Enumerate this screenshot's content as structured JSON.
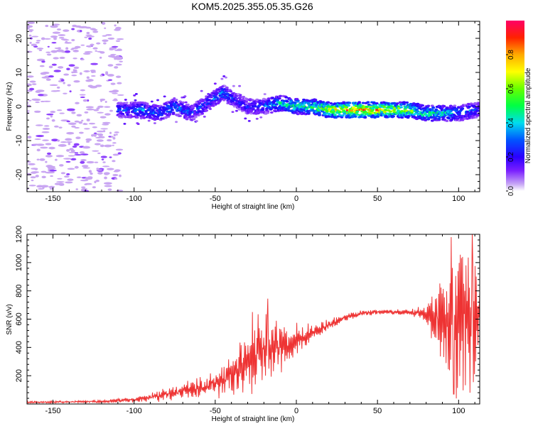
{
  "title": "KOM5.2025.355.05.35.G26",
  "colors": {
    "snr_line": "#ee3333",
    "axis": "#000000",
    "background": "#ffffff",
    "scatter_faint": "#c9a6f2"
  },
  "chart_data": [
    {
      "type": "heatmap",
      "name": "spectrogram",
      "xlabel": "Height of straight line (km)",
      "ylabel": "Frequency (Hz)",
      "xlim": [
        -166,
        113
      ],
      "ylim": [
        -25,
        25
      ],
      "xticks": [
        -150,
        -100,
        -50,
        0,
        50,
        100
      ],
      "xtick_labels": [
        "-150",
        "-100",
        "-50",
        "0",
        "50",
        "100"
      ],
      "yticks": [
        -20,
        -10,
        0,
        10,
        20
      ],
      "ytick_labels": [
        "-20",
        "-10",
        "0",
        "10",
        "20"
      ],
      "ridge_x": [
        -110,
        -95,
        -85,
        -75,
        -65,
        -55,
        -45,
        -38,
        -30,
        -20,
        -10,
        0,
        10,
        20,
        30,
        40,
        50,
        60,
        70,
        80,
        90,
        100,
        110
      ],
      "ridge_freq": [
        -1,
        -1,
        -2,
        0,
        -2,
        1,
        4,
        2,
        0,
        0,
        1,
        0,
        0,
        -1,
        -1,
        -1,
        -1,
        -1,
        -1,
        -2,
        -2,
        -2,
        -1
      ],
      "ridge_amp": [
        0.25,
        0.35,
        0.3,
        0.35,
        0.3,
        0.3,
        0.35,
        0.25,
        0.25,
        0.3,
        0.45,
        0.5,
        0.55,
        0.65,
        0.8,
        0.85,
        0.8,
        0.7,
        0.6,
        0.5,
        0.45,
        0.35,
        0.3
      ],
      "noise_region_x": [
        -166,
        -108
      ],
      "colorbar": {
        "label": "Normalized spectral amplitude",
        "range": [
          0,
          1
        ],
        "ticks": [
          0,
          0.2,
          0.4,
          0.6,
          0.8
        ],
        "tick_labels": [
          "0.0",
          "0.2",
          "0.4",
          "0.6",
          "0.8"
        ]
      }
    },
    {
      "type": "line",
      "name": "snr",
      "xlabel": "Height of straight line (km)",
      "ylabel": "SNR (v/v)",
      "xlim": [
        -166,
        113
      ],
      "ylim": [
        0,
        1200
      ],
      "xticks": [
        -150,
        -100,
        -50,
        0,
        50,
        100
      ],
      "xtick_labels": [
        "-150",
        "-100",
        "-50",
        "0",
        "50",
        "100"
      ],
      "yticks": [
        200,
        400,
        600,
        800,
        1000,
        1200
      ],
      "ytick_labels": [
        "200",
        "400",
        "600",
        "800",
        "1000",
        "1200"
      ],
      "envelope_x": [
        -166,
        -120,
        -100,
        -80,
        -60,
        -45,
        -35,
        -25,
        -15,
        -5,
        0,
        10,
        20,
        30,
        40,
        50,
        60,
        70,
        80,
        85,
        90,
        95,
        100,
        105,
        110,
        113
      ],
      "envelope_mean": [
        12,
        18,
        30,
        70,
        110,
        170,
        260,
        330,
        380,
        430,
        450,
        500,
        560,
        610,
        640,
        650,
        650,
        650,
        640,
        620,
        580,
        560,
        600,
        620,
        640,
        620
      ],
      "envelope_amp": [
        6,
        8,
        20,
        45,
        70,
        110,
        190,
        260,
        230,
        150,
        110,
        70,
        40,
        25,
        20,
        18,
        18,
        20,
        60,
        180,
        260,
        400,
        500,
        520,
        450,
        150
      ],
      "spikes": [
        {
          "x": -17.5,
          "y": 745
        },
        {
          "x": -27,
          "y": 650
        },
        {
          "x": 95.5,
          "y": 1180
        },
        {
          "x": 108.5,
          "y": 1200
        },
        {
          "x": 97,
          "y": 70
        },
        {
          "x": 107,
          "y": 80
        }
      ]
    }
  ]
}
